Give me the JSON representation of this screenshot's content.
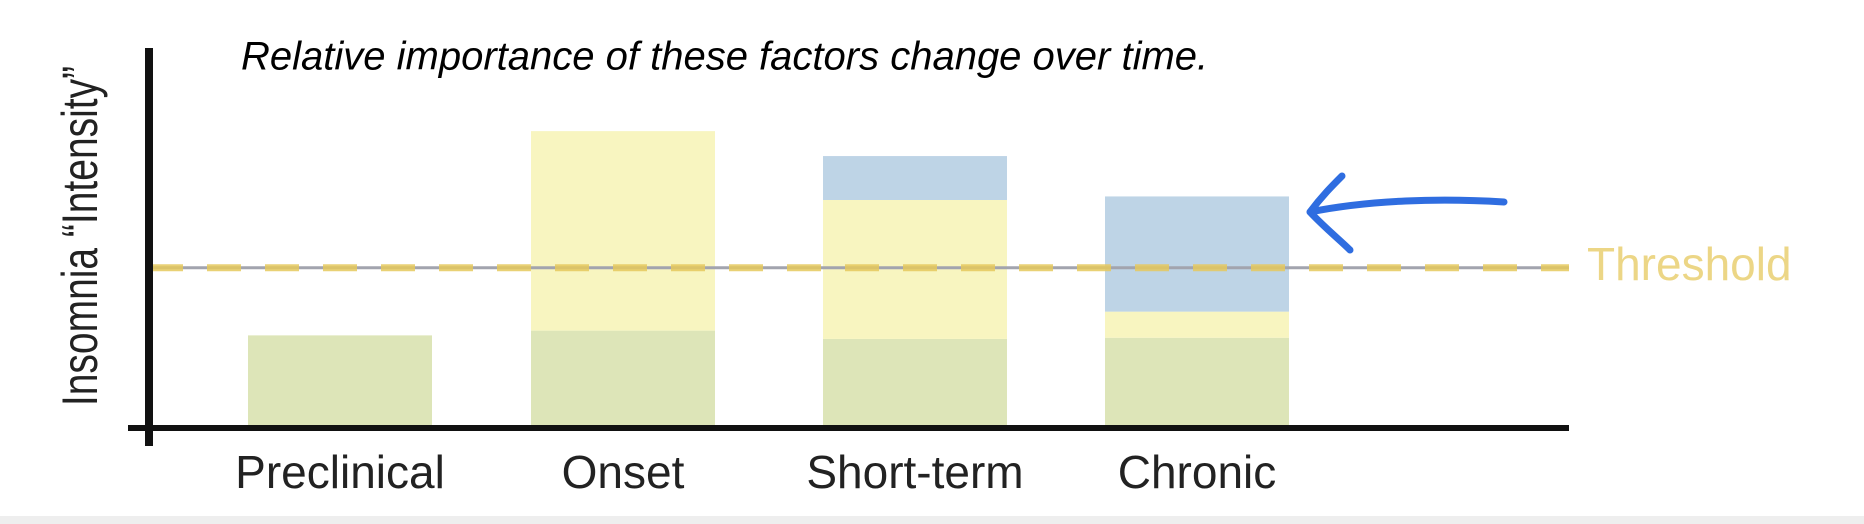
{
  "chart_data": {
    "type": "stacked_bar",
    "title": "Relative importance of these factors change over time.",
    "y_label": "Insomnia “Intensity”",
    "categories": [
      "Preclinical",
      "Onset",
      "Short-term",
      "Chronic"
    ],
    "series": [
      {
        "color": "#dde5b8",
        "values": [
          78,
          82,
          75,
          76
        ]
      },
      {
        "color": "#f8f5c0",
        "values": [
          0,
          168,
          117,
          22
        ]
      },
      {
        "color": "#bed4e6",
        "values": [
          0,
          0,
          37,
          97
        ]
      }
    ],
    "threshold": {
      "label": "Threshold",
      "value": 135,
      "color": "#e6c95e",
      "line_color": "#a2a4ae"
    },
    "ylim": [
      0,
      320
    ]
  }
}
